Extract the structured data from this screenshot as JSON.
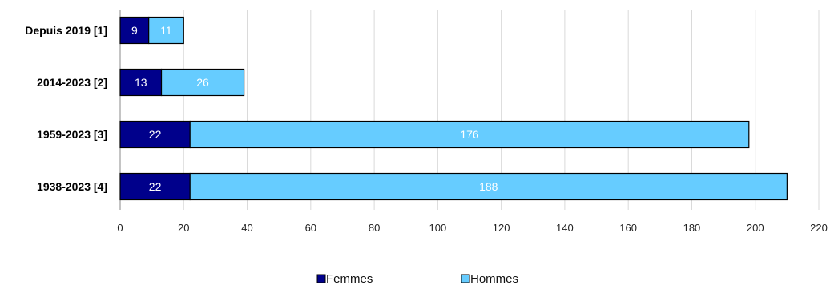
{
  "chart_data": {
    "type": "bar",
    "orientation": "horizontal",
    "stacked": true,
    "categories": [
      "Depuis 2019 [1]",
      "2014-2023 [2]",
      "1959-2023 [3]",
      "1938-2023 [4]"
    ],
    "series": [
      {
        "name": "Femmes",
        "values": [
          9,
          13,
          22,
          22
        ],
        "color": "#00008b"
      },
      {
        "name": "Hommes",
        "values": [
          11,
          26,
          176,
          188
        ],
        "color": "#66ccff"
      }
    ],
    "xlim": [
      0,
      220
    ],
    "xticks": [
      "0",
      "20",
      "40",
      "60",
      "80",
      "100",
      "120",
      "140",
      "160",
      "180",
      "200",
      "220"
    ],
    "grid": "vertical",
    "legend": "bottom-center",
    "title": "",
    "xlabel": "",
    "ylabel": ""
  }
}
